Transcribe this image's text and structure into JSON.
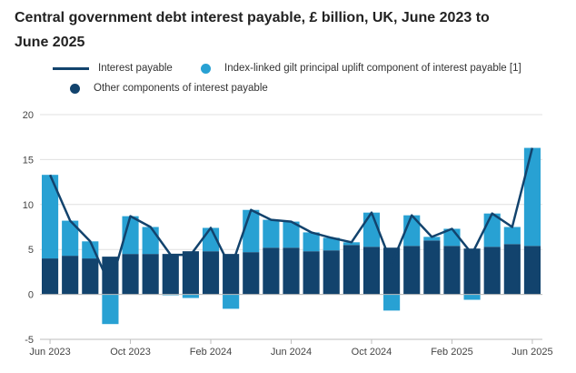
{
  "chart_data": {
    "type": "bar",
    "title": "Central government debt interest payable, £ billion, UK, June 2023 to June 2025",
    "xlabel": "",
    "ylabel": "",
    "ylim": [
      -5,
      20
    ],
    "yticks": [
      20,
      15,
      10,
      5,
      0,
      -5
    ],
    "grid": true,
    "legend_position": "top",
    "categories": [
      "Jun 2023",
      "Jul 2023",
      "Aug 2023",
      "Sep 2023",
      "Oct 2023",
      "Nov 2023",
      "Dec 2023",
      "Jan 2024",
      "Feb 2024",
      "Mar 2024",
      "Apr 2024",
      "May 2024",
      "Jun 2024",
      "Jul 2024",
      "Aug 2024",
      "Sep 2024",
      "Oct 2024",
      "Nov 2024",
      "Dec 2024",
      "Jan 2025",
      "Feb 2025",
      "Mar 2025",
      "Apr 2025",
      "May 2025",
      "Jun 2025"
    ],
    "tick_labels": [
      "Jun 2023",
      "Oct 2023",
      "Feb 2024",
      "Jun 2024",
      "Oct 2024",
      "Feb 2025",
      "Jun 2025"
    ],
    "tick_indices": [
      0,
      4,
      8,
      12,
      16,
      20,
      24
    ],
    "series": [
      {
        "name": "Other components of interest payable",
        "kind": "bar",
        "color": "#12436d",
        "values": [
          4.0,
          4.3,
          4.0,
          4.2,
          4.5,
          4.5,
          4.5,
          4.8,
          4.8,
          4.5,
          4.7,
          5.2,
          5.2,
          4.8,
          4.9,
          5.5,
          5.3,
          5.2,
          5.4,
          6.0,
          5.4,
          5.1,
          5.3,
          5.6,
          5.4
        ]
      },
      {
        "name": "Index-linked gilt principal uplift component of interest payable [1]",
        "kind": "bar",
        "color": "#28a1d3",
        "values": [
          9.3,
          3.9,
          1.9,
          -3.3,
          4.2,
          3.0,
          -0.1,
          -0.4,
          2.6,
          -1.6,
          4.7,
          3.1,
          2.9,
          2.1,
          1.4,
          0.3,
          3.8,
          -1.8,
          3.4,
          0.4,
          1.9,
          -0.6,
          3.7,
          1.9,
          10.9
        ]
      },
      {
        "name": "Interest payable",
        "kind": "line",
        "color": "#12436d",
        "values": [
          13.3,
          8.2,
          5.9,
          0.9,
          8.7,
          7.5,
          4.4,
          4.4,
          7.4,
          2.9,
          9.4,
          8.3,
          8.1,
          6.9,
          6.3,
          5.8,
          9.1,
          3.4,
          8.8,
          6.4,
          7.3,
          4.5,
          9.0,
          7.5,
          16.3
        ]
      }
    ]
  }
}
